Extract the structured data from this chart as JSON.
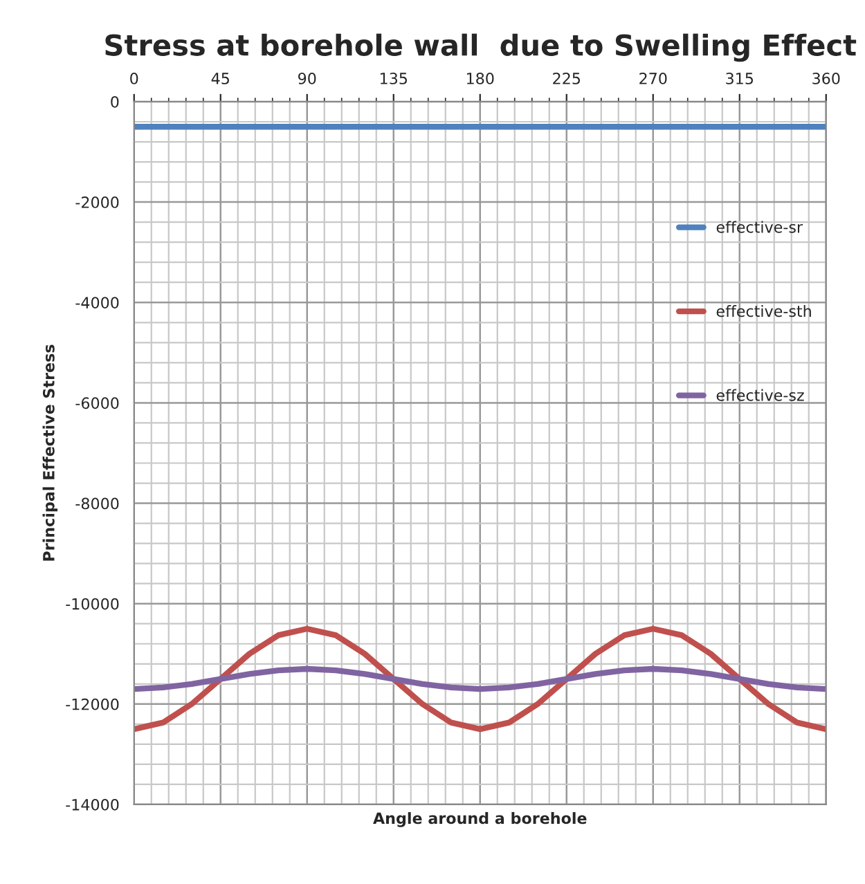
{
  "chart_data": {
    "type": "line",
    "title": "Stress at borehole wall  due to Swelling Effect",
    "xlabel": "Angle around a borehole",
    "ylabel": "Principal Effective Stress",
    "x": [
      0,
      15,
      30,
      45,
      60,
      75,
      90,
      105,
      120,
      135,
      150,
      165,
      180,
      195,
      210,
      225,
      240,
      255,
      270,
      285,
      300,
      315,
      330,
      345,
      360
    ],
    "series": [
      {
        "name": "effective-sr",
        "color": "#4f81bd",
        "values": [
          -500,
          -500,
          -500,
          -500,
          -500,
          -500,
          -500,
          -500,
          -500,
          -500,
          -500,
          -500,
          -500,
          -500,
          -500,
          -500,
          -500,
          -500,
          -500,
          -500,
          -500,
          -500,
          -500,
          -500,
          -500
        ]
      },
      {
        "name": "effective-sth",
        "color": "#c0504d",
        "values": [
          -12500,
          -12370,
          -12000,
          -11500,
          -11000,
          -10630,
          -10500,
          -10630,
          -11000,
          -11500,
          -12000,
          -12370,
          -12500,
          -12370,
          -12000,
          -11500,
          -11000,
          -10630,
          -10500,
          -10630,
          -11000,
          -11500,
          -12000,
          -12370,
          -12500
        ]
      },
      {
        "name": "effective-sz",
        "color": "#8064a2",
        "values": [
          -11700,
          -11670,
          -11600,
          -11500,
          -11400,
          -11330,
          -11300,
          -11330,
          -11400,
          -11500,
          -11600,
          -11670,
          -11700,
          -11670,
          -11600,
          -11500,
          -11400,
          -11330,
          -11300,
          -11330,
          -11400,
          -11500,
          -11600,
          -11670,
          -11700
        ]
      }
    ],
    "xlim": [
      0,
      360
    ],
    "xticks": [
      0,
      45,
      90,
      135,
      180,
      225,
      270,
      315,
      360
    ],
    "ylim": [
      -14000,
      0
    ],
    "yticks": [
      -14000,
      -12000,
      -10000,
      -8000,
      -6000,
      -4000,
      -2000,
      0
    ],
    "grid": true,
    "legend": "right",
    "marker": "none",
    "line_style": "solid"
  }
}
